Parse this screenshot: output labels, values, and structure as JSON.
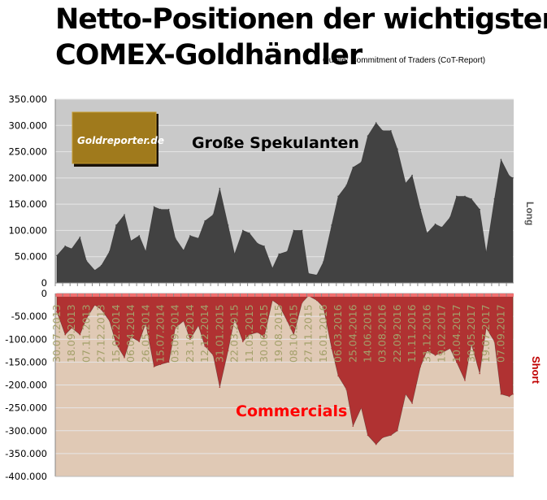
{
  "title_line1": "Netto-Positionen der wichtigsten",
  "title_line2": "COMEX-Goldhändler",
  "source": "Quelle: Commitment of Traders (CoT-Report)",
  "logo": "Goldreporter.de",
  "colors": {
    "upper_bg": "#c9c9c9",
    "upper_area": "#424242",
    "lower_bg": "#e0c9b5",
    "lower_area": "#b03232",
    "lower_top": "#f07070",
    "tick_label": "#a3a06a",
    "long_label": "#555555",
    "short_label": "#c00000",
    "commercials_label": "#ff0000"
  },
  "chart_data": [
    {
      "type": "area",
      "series": [
        {
          "name": "Große Spekulanten",
          "values_ref": "points"
        }
      ],
      "side_label": "Long",
      "ylim": [
        0,
        350000
      ],
      "yticks": [
        "350.000",
        "300.000",
        "250.000",
        "200.000",
        "150.000",
        "100.000",
        "50.000",
        "0"
      ],
      "grid": true,
      "points": [
        [
          "30.07.2013",
          52000
        ],
        [
          "27.08.2013",
          70000
        ],
        [
          "18.09.2013",
          65000
        ],
        [
          "16.10.2013",
          87000
        ],
        [
          "07.11.2013",
          42000
        ],
        [
          "05.12.2013",
          24000
        ],
        [
          "27.12.2013",
          33000
        ],
        [
          "24.01.2014",
          60000
        ],
        [
          "15.02.2014",
          110000
        ],
        [
          "15.03.2014",
          130000
        ],
        [
          "06.04.2014",
          80000
        ],
        [
          "04.05.2014",
          90000
        ],
        [
          "26.05.2014",
          60000
        ],
        [
          "23.06.2014",
          145000
        ],
        [
          "15.07.2014",
          140000
        ],
        [
          "12.08.2014",
          140000
        ],
        [
          "03.09.2014",
          85000
        ],
        [
          "01.10.2014",
          62000
        ],
        [
          "23.10.2014",
          90000
        ],
        [
          "20.11.2014",
          85000
        ],
        [
          "12.12.2014",
          118000
        ],
        [
          "09.01.2015",
          130000
        ],
        [
          "31.01.2015",
          180000
        ],
        [
          "28.02.2015",
          110000
        ],
        [
          "22.03.2015",
          55000
        ],
        [
          "19.04.2015",
          100000
        ],
        [
          "11.05.2015",
          95000
        ],
        [
          "08.06.2015",
          75000
        ],
        [
          "30.06.2015",
          70000
        ],
        [
          "28.07.2015",
          28000
        ],
        [
          "19.08.2015",
          55000
        ],
        [
          "16.09.2015",
          60000
        ],
        [
          "08.10.2015",
          100000
        ],
        [
          "05.11.2015",
          100000
        ],
        [
          "27.11.2015",
          18000
        ],
        [
          "25.12.2015",
          15000
        ],
        [
          "16.01.2016",
          40000
        ],
        [
          "13.02.2016",
          110000
        ],
        [
          "06.03.2016",
          165000
        ],
        [
          "03.04.2016",
          186000
        ],
        [
          "25.04.2016",
          220000
        ],
        [
          "23.05.2016",
          230000
        ],
        [
          "14.06.2016",
          280000
        ],
        [
          "12.07.2016",
          305000
        ],
        [
          "03.08.2016",
          290000
        ],
        [
          "31.08.2016",
          290000
        ],
        [
          "22.09.2016",
          255000
        ],
        [
          "20.10.2016",
          190000
        ],
        [
          "11.11.2016",
          205000
        ],
        [
          "09.12.2016",
          140000
        ],
        [
          "31.12.2016",
          95000
        ],
        [
          "28.01.2017",
          112000
        ],
        [
          "19.02.2017",
          106000
        ],
        [
          "19.03.2017",
          125000
        ],
        [
          "10.04.2017",
          165000
        ],
        [
          "08.05.2017",
          165000
        ],
        [
          "30.05.2017",
          160000
        ],
        [
          "27.06.2017",
          140000
        ],
        [
          "19.07.2017",
          58000
        ],
        [
          "16.08.2017",
          160000
        ],
        [
          "07.09.2017",
          235000
        ],
        [
          "05.10.2017",
          204000
        ],
        [
          "17.10.2017",
          200000
        ]
      ]
    },
    {
      "type": "area",
      "series": [
        {
          "name": "Commercials",
          "values_ref": "points"
        }
      ],
      "side_label": "Short",
      "ylim": [
        -400000,
        0
      ],
      "yticks": [
        "0",
        "-50.000",
        "-100.000",
        "-150.000",
        "-200.000",
        "-250.000",
        "-300.000",
        "-350.000",
        "-400.000"
      ],
      "grid": true,
      "xticks": [
        "30.07.2013",
        "18.09.2013",
        "07.11.2013",
        "27.12.2013",
        "15.02.2014",
        "06.04.2014",
        "26.05.2014",
        "15.07.2014",
        "03.09.2014",
        "23.10.2014",
        "12.12.2014",
        "31.01.2015",
        "22.03.2015",
        "11.05.2015",
        "30.06.2015",
        "19.08.2015",
        "08.10.2015",
        "27.11.2015",
        "16.01.2016",
        "06.03.2016",
        "25.04.2016",
        "14.06.2016",
        "03.08.2016",
        "22.09.2016",
        "11.11.2016",
        "31.12.2016",
        "19.02.2017",
        "10.04.2017",
        "30.05.2017",
        "19.07.2017",
        "07.09.2017"
      ],
      "points": [
        [
          "30.07.2013",
          -40000
        ],
        [
          "27.08.2013",
          -90000
        ],
        [
          "18.09.2013",
          -75000
        ],
        [
          "16.10.2013",
          -90000
        ],
        [
          "07.11.2013",
          -55000
        ],
        [
          "05.12.2013",
          -25000
        ],
        [
          "27.12.2013",
          -35000
        ],
        [
          "24.01.2014",
          -60000
        ],
        [
          "15.02.2014",
          -110000
        ],
        [
          "15.03.2014",
          -140000
        ],
        [
          "06.04.2014",
          -95000
        ],
        [
          "04.05.2014",
          -105000
        ],
        [
          "26.05.2014",
          -65000
        ],
        [
          "23.06.2014",
          -160000
        ],
        [
          "15.07.2014",
          -155000
        ],
        [
          "12.08.2014",
          -150000
        ],
        [
          "03.09.2014",
          -75000
        ],
        [
          "01.10.2014",
          -60000
        ],
        [
          "23.10.2014",
          -100000
        ],
        [
          "20.11.2014",
          -70000
        ],
        [
          "12.12.2014",
          -115000
        ],
        [
          "09.01.2015",
          -135000
        ],
        [
          "31.01.2015",
          -205000
        ],
        [
          "28.02.2015",
          -125000
        ],
        [
          "22.03.2015",
          -55000
        ],
        [
          "19.04.2015",
          -105000
        ],
        [
          "11.05.2015",
          -90000
        ],
        [
          "08.06.2015",
          -85000
        ],
        [
          "30.06.2015",
          -95000
        ],
        [
          "28.07.2015",
          -15000
        ],
        [
          "19.08.2015",
          -25000
        ],
        [
          "16.09.2015",
          -60000
        ],
        [
          "08.10.2015",
          -90000
        ],
        [
          "05.11.2015",
          -20000
        ],
        [
          "27.11.2015",
          -5000
        ],
        [
          "25.12.2015",
          -15000
        ],
        [
          "16.01.2016",
          -30000
        ],
        [
          "13.02.2016",
          -120000
        ],
        [
          "06.03.2016",
          -180000
        ],
        [
          "03.04.2016",
          -210000
        ],
        [
          "25.04.2016",
          -290000
        ],
        [
          "23.05.2016",
          -250000
        ],
        [
          "14.06.2016",
          -310000
        ],
        [
          "12.07.2016",
          -330000
        ],
        [
          "03.08.2016",
          -315000
        ],
        [
          "31.08.2016",
          -310000
        ],
        [
          "22.09.2016",
          -300000
        ],
        [
          "20.10.2016",
          -220000
        ],
        [
          "11.11.2016",
          -240000
        ],
        [
          "09.12.2016",
          -160000
        ],
        [
          "31.12.2016",
          -125000
        ],
        [
          "28.01.2017",
          -135000
        ],
        [
          "19.02.2017",
          -130000
        ],
        [
          "19.03.2017",
          -120000
        ],
        [
          "10.04.2017",
          -150000
        ],
        [
          "08.05.2017",
          -190000
        ],
        [
          "30.05.2017",
          -110000
        ],
        [
          "27.06.2017",
          -175000
        ],
        [
          "19.07.2017",
          -75000
        ],
        [
          "16.08.2017",
          -105000
        ],
        [
          "07.09.2017",
          -220000
        ],
        [
          "05.10.2017",
          -225000
        ],
        [
          "17.10.2017",
          -220000
        ]
      ]
    }
  ],
  "upper_series_label": "Große Spekulanten",
  "lower_series_label": "Commercials",
  "long_label": "Long",
  "short_label": "Short"
}
